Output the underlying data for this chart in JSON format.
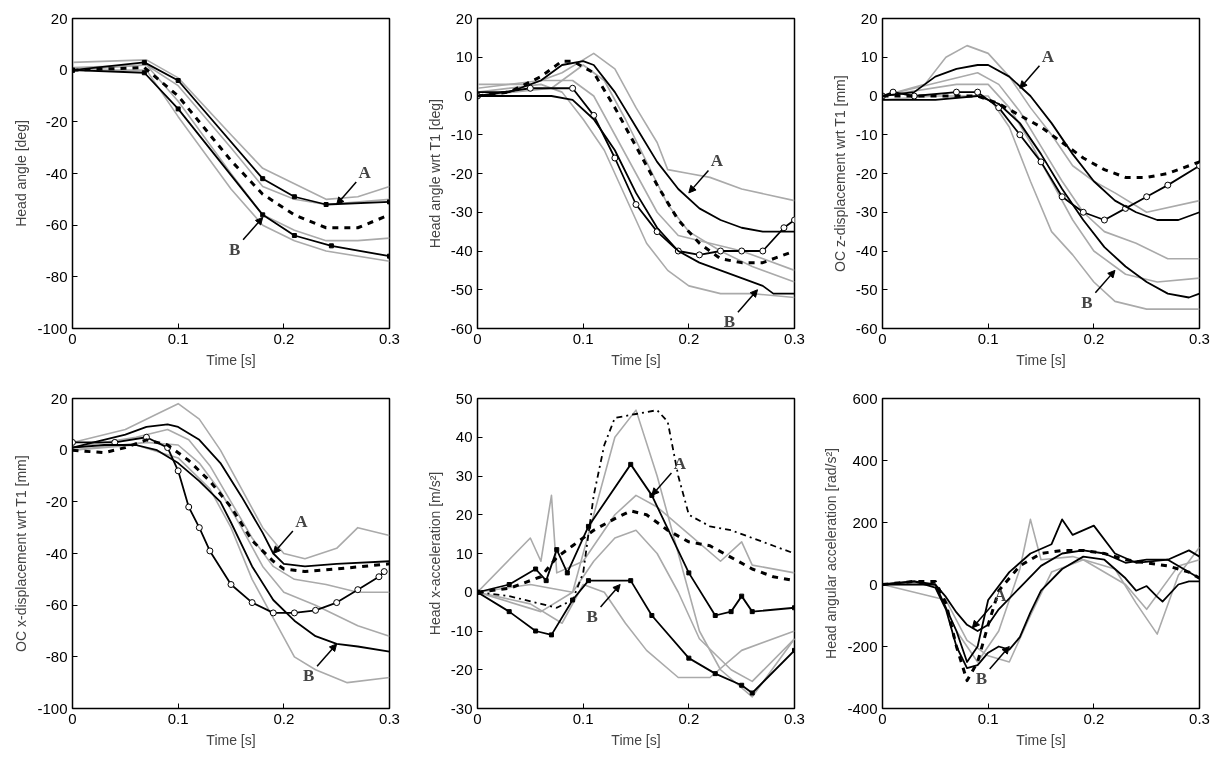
{
  "chart_data": [
    {
      "type": "line",
      "xlabel": "Time [s]",
      "ylabel": "Head angle [deg]",
      "xlim": [
        0,
        0.3
      ],
      "ylim": [
        -100,
        20
      ],
      "xticks": [
        0,
        0.1,
        0.2,
        0.3
      ],
      "yticks": [
        -100,
        -80,
        -60,
        -40,
        -20,
        0,
        20
      ],
      "grid": false,
      "annotations": [
        {
          "text": "A",
          "x": 0.25,
          "y": -52
        },
        {
          "text": "B",
          "x": 0.18,
          "y": -57
        }
      ],
      "series": [
        {
          "color": "#aaaaaa",
          "line_style": "solid",
          "x": [
            0,
            0.07,
            0.1,
            0.15,
            0.18,
            0.21,
            0.24,
            0.27,
            0.3
          ],
          "values": [
            3,
            4,
            -3,
            -25,
            -38,
            -44,
            -50,
            -49,
            -45
          ]
        },
        {
          "color": "#aaaaaa",
          "line_style": "solid",
          "x": [
            0,
            0.07,
            0.1,
            0.15,
            0.18,
            0.21,
            0.24,
            0.27,
            0.3
          ],
          "values": [
            0,
            2,
            -12,
            -40,
            -56,
            -62,
            -66,
            -66,
            -65
          ]
        },
        {
          "color": "#aaaaaa",
          "line_style": "solid",
          "x": [
            0,
            0.07,
            0.1,
            0.15,
            0.18,
            0.21,
            0.24,
            0.3
          ],
          "values": [
            0,
            0,
            -18,
            -46,
            -60,
            -66,
            -70,
            -74
          ]
        },
        {
          "color": "#aaaaaa",
          "line_style": "solid",
          "x": [
            0,
            0.07,
            0.1,
            0.15,
            0.18,
            0.21,
            0.24,
            0.3
          ],
          "values": [
            1,
            2,
            -6,
            -30,
            -45,
            -50,
            -52,
            -50
          ]
        },
        {
          "color": "#000000",
          "line_style": "dashed",
          "x": [
            0,
            0.068,
            0.1,
            0.15,
            0.18,
            0.21,
            0.24,
            0.27,
            0.3
          ],
          "values": [
            0,
            1,
            -10,
            -35,
            -48,
            -56,
            -61,
            -61,
            -56
          ]
        },
        {
          "color": "#000000",
          "line_style": "solid",
          "marker": "square",
          "x": [
            0,
            0.068,
            0.1,
            0.18,
            0.21,
            0.24,
            0.3
          ],
          "values": [
            0,
            3,
            -4,
            -42,
            -49,
            -52,
            -51
          ]
        },
        {
          "color": "#000000",
          "line_style": "solid",
          "marker": "square",
          "x": [
            0,
            0.068,
            0.1,
            0.18,
            0.21,
            0.245,
            0.3
          ],
          "values": [
            0,
            -1,
            -15,
            -56,
            -64,
            -68,
            -72
          ]
        }
      ]
    },
    {
      "type": "line",
      "xlabel": "Time [s]",
      "ylabel": "Head angle wrt T1 [deg]",
      "xlim": [
        0,
        0.3
      ],
      "ylim": [
        -60,
        20
      ],
      "xticks": [
        0,
        0.1,
        0.2,
        0.3
      ],
      "yticks": [
        -60,
        -50,
        -40,
        -30,
        -20,
        -10,
        0,
        10,
        20
      ],
      "grid": false,
      "annotations": [
        {
          "text": "A",
          "x": 0.2,
          "y": -25
        },
        {
          "text": "B",
          "x": 0.265,
          "y": -50
        }
      ],
      "series": [
        {
          "color": "#aaaaaa",
          "line_style": "solid",
          "x": [
            0,
            0.05,
            0.08,
            0.11,
            0.13,
            0.15,
            0.17,
            0.18,
            0.2,
            0.22,
            0.25,
            0.3
          ],
          "values": [
            3,
            3,
            6,
            11,
            7,
            -3,
            -12,
            -19,
            -20,
            -21,
            -24,
            -27
          ]
        },
        {
          "color": "#aaaaaa",
          "line_style": "solid",
          "x": [
            0,
            0.06,
            0.08,
            0.1,
            0.12,
            0.14,
            0.16,
            0.18,
            0.2,
            0.23,
            0.26,
            0.3
          ],
          "values": [
            1,
            3,
            1,
            -6,
            -14,
            -26,
            -38,
            -45,
            -49,
            -51,
            -51,
            -52
          ]
        },
        {
          "color": "#aaaaaa",
          "line_style": "solid",
          "x": [
            0,
            0.06,
            0.09,
            0.11,
            0.13,
            0.15,
            0.17,
            0.19,
            0.22,
            0.25,
            0.3
          ],
          "values": [
            2,
            4,
            4,
            0,
            -10,
            -20,
            -30,
            -36,
            -38,
            -40,
            -45
          ]
        },
        {
          "color": "#aaaaaa",
          "line_style": "solid",
          "x": [
            0,
            0.07,
            0.1,
            0.12,
            0.14,
            0.16,
            0.18,
            0.2,
            0.23,
            0.26,
            0.3
          ],
          "values": [
            0,
            2,
            8,
            4,
            -6,
            -17,
            -28,
            -35,
            -40,
            -44,
            -48
          ]
        },
        {
          "color": "#000000",
          "line_style": "solid",
          "marker": "circle",
          "x": [
            0,
            0.05,
            0.09,
            0.11,
            0.13,
            0.15,
            0.17,
            0.19,
            0.21,
            0.23,
            0.25,
            0.27,
            0.29,
            0.3
          ],
          "values": [
            0,
            2,
            2,
            -5,
            -16,
            -28,
            -35,
            -40,
            -41,
            -40,
            -40,
            -40,
            -34,
            -32
          ]
        },
        {
          "color": "#000000",
          "line_style": "dashed",
          "x": [
            0,
            0.03,
            0.06,
            0.08,
            0.09,
            0.11,
            0.13,
            0.15,
            0.17,
            0.19,
            0.21,
            0.23,
            0.25,
            0.27,
            0.3
          ],
          "values": [
            0,
            1,
            5,
            9,
            9,
            6,
            -3,
            -13,
            -23,
            -32,
            -38,
            -42,
            -43,
            -43,
            -40
          ]
        },
        {
          "color": "#000000",
          "line_style": "solid",
          "x": [
            0,
            0.03,
            0.06,
            0.08,
            0.1,
            0.11,
            0.13,
            0.15,
            0.17,
            0.19,
            0.21,
            0.23,
            0.25,
            0.27,
            0.3
          ],
          "values": [
            1,
            1,
            4,
            8,
            9,
            8,
            1,
            -8,
            -17,
            -24,
            -29,
            -32,
            -34,
            -35,
            -35
          ]
        },
        {
          "color": "#000000",
          "line_style": "solid",
          "x": [
            0,
            0.05,
            0.07,
            0.09,
            0.11,
            0.13,
            0.15,
            0.17,
            0.19,
            0.21,
            0.23,
            0.25,
            0.27,
            0.28,
            0.3
          ],
          "values": [
            0,
            0,
            0,
            -1,
            -6,
            -14,
            -25,
            -34,
            -40,
            -43,
            -45,
            -47,
            -49,
            -51,
            -51
          ]
        }
      ]
    },
    {
      "type": "line",
      "xlabel": "Time [s]",
      "ylabel": "OC z-displacement wrt T1 [mm]",
      "xlim": [
        0,
        0.3
      ],
      "ylim": [
        -60,
        20
      ],
      "xticks": [
        0,
        0.1,
        0.2,
        0.3
      ],
      "yticks": [
        -60,
        -50,
        -40,
        -30,
        -20,
        -10,
        0,
        10,
        20
      ],
      "grid": false,
      "annotations": [
        {
          "text": "A",
          "x": 0.13,
          "y": 2
        },
        {
          "text": "B",
          "x": 0.22,
          "y": -45
        }
      ],
      "series": [
        {
          "color": "#aaaaaa",
          "line_style": "solid",
          "x": [
            0,
            0.04,
            0.06,
            0.08,
            0.1,
            0.12,
            0.14,
            0.16,
            0.18,
            0.2,
            0.22,
            0.25,
            0.3
          ],
          "values": [
            0,
            3,
            10,
            13,
            11,
            5,
            -3,
            -10,
            -18,
            -22,
            -25,
            -30,
            -27
          ]
        },
        {
          "color": "#aaaaaa",
          "line_style": "solid",
          "x": [
            0,
            0.05,
            0.1,
            0.12,
            0.14,
            0.16,
            0.18,
            0.2,
            0.22,
            0.25,
            0.3
          ],
          "values": [
            -1,
            0,
            0,
            -8,
            -22,
            -35,
            -41,
            -48,
            -53,
            -55,
            -55
          ]
        },
        {
          "color": "#aaaaaa",
          "line_style": "solid",
          "x": [
            0,
            0.06,
            0.09,
            0.11,
            0.13,
            0.15,
            0.17,
            0.19,
            0.21,
            0.24,
            0.27,
            0.3
          ],
          "values": [
            0,
            4,
            6,
            3,
            -4,
            -13,
            -22,
            -30,
            -35,
            -38,
            -42,
            -42
          ]
        },
        {
          "color": "#aaaaaa",
          "line_style": "solid",
          "x": [
            0,
            0.07,
            0.1,
            0.12,
            0.14,
            0.16,
            0.18,
            0.2,
            0.23,
            0.26,
            0.3
          ],
          "values": [
            0,
            3,
            3,
            -3,
            -12,
            -22,
            -32,
            -40,
            -46,
            -48,
            -47
          ]
        },
        {
          "color": "#000000",
          "line_style": "solid",
          "marker": "circle",
          "x": [
            0,
            0.01,
            0.03,
            0.07,
            0.09,
            0.11,
            0.13,
            0.15,
            0.17,
            0.19,
            0.21,
            0.23,
            0.25,
            0.27,
            0.3
          ],
          "values": [
            0,
            1,
            0,
            1,
            1,
            -3,
            -10,
            -17,
            -26,
            -30,
            -32,
            -29,
            -26,
            -23,
            -18
          ]
        },
        {
          "color": "#000000",
          "line_style": "dashed",
          "x": [
            0,
            0.05,
            0.09,
            0.11,
            0.13,
            0.15,
            0.17,
            0.19,
            0.21,
            0.23,
            0.25,
            0.27,
            0.3
          ],
          "values": [
            0,
            0,
            0,
            -2,
            -5,
            -8,
            -12,
            -16,
            -19,
            -21,
            -21,
            -20,
            -17
          ]
        },
        {
          "color": "#000000",
          "line_style": "solid",
          "x": [
            0,
            0.03,
            0.05,
            0.07,
            0.09,
            0.1,
            0.12,
            0.14,
            0.16,
            0.18,
            0.2,
            0.22,
            0.24,
            0.26,
            0.28,
            0.3
          ],
          "values": [
            0,
            1,
            5,
            7,
            8,
            8,
            5,
            0,
            -7,
            -15,
            -22,
            -27,
            -30,
            -32,
            -32,
            -30
          ]
        },
        {
          "color": "#000000",
          "line_style": "solid",
          "x": [
            0,
            0.05,
            0.09,
            0.11,
            0.13,
            0.15,
            0.17,
            0.19,
            0.21,
            0.23,
            0.25,
            0.27,
            0.29,
            0.3
          ],
          "values": [
            -1,
            -1,
            0,
            -2,
            -7,
            -15,
            -24,
            -32,
            -39,
            -44,
            -48,
            -51,
            -52,
            -51
          ]
        }
      ]
    },
    {
      "type": "line",
      "xlabel": "Time [s]",
      "ylabel": "OC x-displacement wrt T1 [mm]",
      "xlim": [
        0,
        0.3
      ],
      "ylim": [
        -100,
        20
      ],
      "xticks": [
        0,
        0.1,
        0.2,
        0.3
      ],
      "yticks": [
        -100,
        -80,
        -60,
        -40,
        -20,
        0,
        20
      ],
      "grid": false,
      "annotations": [
        {
          "text": "A",
          "x": 0.19,
          "y": -40
        },
        {
          "text": "B",
          "x": 0.25,
          "y": -75
        }
      ],
      "series": [
        {
          "color": "#aaaaaa",
          "line_style": "solid",
          "x": [
            0,
            0.05,
            0.08,
            0.1,
            0.12,
            0.14,
            0.16,
            0.18,
            0.2,
            0.22,
            0.25,
            0.27,
            0.3
          ],
          "values": [
            3,
            8,
            14,
            18,
            12,
            0,
            -15,
            -30,
            -40,
            -42,
            -38,
            -30,
            -33
          ]
        },
        {
          "color": "#aaaaaa",
          "line_style": "solid",
          "x": [
            0,
            0.06,
            0.1,
            0.13,
            0.15,
            0.17,
            0.19,
            0.21,
            0.23,
            0.26,
            0.3
          ],
          "values": [
            0,
            2,
            -3,
            -15,
            -30,
            -50,
            -65,
            -80,
            -85,
            -90,
            -88
          ]
        },
        {
          "color": "#aaaaaa",
          "line_style": "solid",
          "x": [
            0,
            0.06,
            0.09,
            0.11,
            0.13,
            0.15,
            0.17,
            0.19,
            0.21,
            0.24,
            0.27,
            0.3
          ],
          "values": [
            1,
            5,
            8,
            4,
            -6,
            -20,
            -34,
            -45,
            -50,
            -52,
            -55,
            -55
          ]
        },
        {
          "color": "#aaaaaa",
          "line_style": "solid",
          "x": [
            0,
            0.07,
            0.1,
            0.12,
            0.14,
            0.16,
            0.18,
            0.2,
            0.23,
            0.27,
            0.3
          ],
          "values": [
            0,
            3,
            2,
            -5,
            -16,
            -30,
            -45,
            -55,
            -60,
            -68,
            -72
          ]
        },
        {
          "color": "#000000",
          "line_style": "solid",
          "marker": "circle",
          "x": [
            0,
            0.04,
            0.07,
            0.09,
            0.1,
            0.11,
            0.12,
            0.13,
            0.15,
            0.17,
            0.19,
            0.21,
            0.23,
            0.25,
            0.27,
            0.29,
            0.295
          ],
          "values": [
            3,
            3,
            5,
            1,
            -8,
            -22,
            -30,
            -39,
            -52,
            -59,
            -63,
            -63,
            -62,
            -59,
            -54,
            -49,
            -47
          ]
        },
        {
          "color": "#000000",
          "line_style": "dashed",
          "x": [
            0,
            0.03,
            0.05,
            0.07,
            0.09,
            0.11,
            0.13,
            0.15,
            0.17,
            0.19,
            0.2,
            0.22,
            0.25,
            0.3
          ],
          "values": [
            0,
            -1,
            1,
            4,
            2,
            -4,
            -12,
            -22,
            -35,
            -43,
            -46,
            -47,
            -46,
            -44
          ]
        },
        {
          "color": "#000000",
          "line_style": "solid",
          "x": [
            0,
            0.02,
            0.05,
            0.07,
            0.09,
            0.1,
            0.12,
            0.14,
            0.16,
            0.18,
            0.19,
            0.2,
            0.22,
            0.25,
            0.3
          ],
          "values": [
            1,
            3,
            6,
            9,
            10,
            9,
            4,
            -5,
            -18,
            -32,
            -40,
            -44,
            -45,
            -44,
            -43
          ]
        },
        {
          "color": "#000000",
          "line_style": "solid",
          "x": [
            0,
            0.03,
            0.06,
            0.08,
            0.1,
            0.12,
            0.14,
            0.15,
            0.17,
            0.19,
            0.21,
            0.23,
            0.25,
            0.27,
            0.3
          ],
          "values": [
            1,
            2,
            2,
            0,
            -5,
            -12,
            -20,
            -28,
            -45,
            -58,
            -66,
            -72,
            -75,
            -76,
            -78
          ]
        }
      ]
    },
    {
      "type": "line",
      "xlabel": "Time [s]",
      "ylabel": "Head x-acceleration [m/s²]",
      "xlim": [
        0,
        0.3
      ],
      "ylim": [
        -30,
        50
      ],
      "xticks": [
        0,
        0.1,
        0.2,
        0.3
      ],
      "yticks": [
        -30,
        -20,
        -10,
        0,
        10,
        20,
        30,
        40,
        50
      ],
      "grid": false,
      "annotations": [
        {
          "text": "A",
          "x": 0.165,
          "y": 25
        },
        {
          "text": "B",
          "x": 0.135,
          "y": 2
        }
      ],
      "series": [
        {
          "color": "#aaaaaa",
          "line_style": "solid",
          "x": [
            0,
            0.05,
            0.09,
            0.11,
            0.13,
            0.15,
            0.17,
            0.19,
            0.21,
            0.23,
            0.26,
            0.3
          ],
          "values": [
            0,
            2,
            0,
            20,
            40,
            47,
            30,
            10,
            -10,
            -20,
            -27,
            -12
          ]
        },
        {
          "color": "#aaaaaa",
          "line_style": "solid",
          "x": [
            0,
            0.05,
            0.06,
            0.07,
            0.075,
            0.1,
            0.13,
            0.15,
            0.17,
            0.2,
            0.23,
            0.25,
            0.26,
            0.3
          ],
          "values": [
            0,
            14,
            8,
            25,
            5,
            8,
            20,
            25,
            22,
            15,
            8,
            13,
            7,
            5
          ]
        },
        {
          "color": "#aaaaaa",
          "line_style": "solid",
          "x": [
            0,
            0.05,
            0.08,
            0.1,
            0.12,
            0.14,
            0.16,
            0.19,
            0.22,
            0.25,
            0.3
          ],
          "values": [
            0,
            -3,
            -8,
            2,
            0,
            -8,
            -15,
            -22,
            -22,
            -15,
            -10
          ]
        },
        {
          "color": "#aaaaaa",
          "line_style": "solid",
          "x": [
            0,
            0.06,
            0.09,
            0.11,
            0.13,
            0.15,
            0.17,
            0.19,
            0.21,
            0.24,
            0.26,
            0.3
          ],
          "values": [
            0,
            -5,
            0,
            8,
            14,
            16,
            10,
            0,
            -12,
            -20,
            -23,
            -12
          ]
        },
        {
          "color": "#000000",
          "line_style": "dashdot",
          "x": [
            0,
            0.03,
            0.06,
            0.075,
            0.09,
            0.1,
            0.11,
            0.12,
            0.13,
            0.15,
            0.17,
            0.18,
            0.19,
            0.2,
            0.22,
            0.24,
            0.26,
            0.28,
            0.3
          ],
          "values": [
            0,
            -1,
            -3,
            -4,
            -2,
            5,
            25,
            38,
            45,
            46,
            47,
            44,
            30,
            20,
            17,
            16,
            14,
            12,
            10
          ]
        },
        {
          "color": "#000000",
          "line_style": "dashed",
          "x": [
            0,
            0.03,
            0.06,
            0.075,
            0.09,
            0.11,
            0.13,
            0.145,
            0.16,
            0.18,
            0.2,
            0.22,
            0.24,
            0.26,
            0.28,
            0.3
          ],
          "values": [
            0,
            1,
            4,
            9,
            12,
            16,
            19,
            21,
            20,
            16,
            13,
            12,
            9,
            6,
            4,
            3
          ]
        },
        {
          "color": "#000000",
          "line_style": "solid",
          "marker": "square",
          "x": [
            0,
            0.03,
            0.055,
            0.065,
            0.075,
            0.085,
            0.105,
            0.145,
            0.165,
            0.2,
            0.225,
            0.24,
            0.25,
            0.26,
            0.3
          ],
          "values": [
            0,
            2,
            6,
            3,
            11,
            5,
            17,
            33,
            25,
            5,
            -6,
            -5,
            -1,
            -5,
            -4
          ]
        },
        {
          "color": "#000000",
          "line_style": "solid",
          "marker": "square",
          "x": [
            0,
            0.03,
            0.055,
            0.07,
            0.09,
            0.105,
            0.145,
            0.165,
            0.2,
            0.225,
            0.25,
            0.26,
            0.3
          ],
          "values": [
            0,
            -5,
            -10,
            -11,
            -2,
            3,
            3,
            -6,
            -17,
            -21,
            -24,
            -26,
            -15
          ]
        }
      ]
    },
    {
      "type": "line",
      "xlabel": "Time [s]",
      "ylabel": "Head angular acceleration [rad/s²]",
      "xlim": [
        0,
        0.3
      ],
      "ylim": [
        -400,
        600
      ],
      "xticks": [
        0,
        0.1,
        0.2,
        0.3
      ],
      "yticks": [
        -400,
        -200,
        0,
        200,
        400,
        600
      ],
      "grid": false,
      "annotations": [
        {
          "text": "A",
          "x": 0.085,
          "y": -140
        },
        {
          "text": "B",
          "x": 0.12,
          "y": -200
        }
      ],
      "series": [
        {
          "color": "#aaaaaa",
          "line_style": "solid",
          "x": [
            0,
            0.05,
            0.07,
            0.09,
            0.11,
            0.13,
            0.14,
            0.15,
            0.18,
            0.22,
            0.24,
            0.26,
            0.28,
            0.3
          ],
          "values": [
            0,
            0,
            -150,
            -250,
            -150,
            50,
            210,
            80,
            90,
            50,
            -60,
            -160,
            30,
            120
          ]
        },
        {
          "color": "#aaaaaa",
          "line_style": "solid",
          "x": [
            0,
            0.06,
            0.08,
            0.1,
            0.12,
            0.14,
            0.16,
            0.19,
            0.23,
            0.25,
            0.28,
            0.3
          ],
          "values": [
            0,
            -50,
            -180,
            -230,
            -250,
            -100,
            40,
            80,
            0,
            -80,
            60,
            80
          ]
        },
        {
          "color": "#000000",
          "line_style": "solid",
          "x": [
            0,
            0.05,
            0.07,
            0.08,
            0.09,
            0.1,
            0.12,
            0.14,
            0.16,
            0.17,
            0.18,
            0.2,
            0.22,
            0.24,
            0.27,
            0.3
          ],
          "values": [
            0,
            0,
            -150,
            -250,
            -200,
            -50,
            40,
            100,
            130,
            210,
            160,
            190,
            100,
            70,
            80,
            20
          ]
        },
        {
          "color": "#000000",
          "line_style": "dashed",
          "x": [
            0,
            0.03,
            0.05,
            0.06,
            0.07,
            0.08,
            0.09,
            0.1,
            0.11,
            0.13,
            0.15,
            0.17,
            0.19,
            0.21,
            0.23,
            0.25,
            0.27,
            0.29,
            0.3
          ],
          "values": [
            0,
            10,
            10,
            -60,
            -200,
            -310,
            -250,
            -130,
            -20,
            60,
            100,
            110,
            110,
            100,
            80,
            70,
            60,
            40,
            20
          ]
        },
        {
          "color": "#000000",
          "line_style": "solid",
          "x": [
            0,
            0.03,
            0.05,
            0.06,
            0.07,
            0.08,
            0.09,
            0.1,
            0.11,
            0.13,
            0.15,
            0.17,
            0.19,
            0.21,
            0.23,
            0.25,
            0.27,
            0.29,
            0.3
          ],
          "values": [
            0,
            10,
            0,
            -40,
            -90,
            -130,
            -150,
            -130,
            -80,
            -10,
            60,
            100,
            110,
            100,
            70,
            80,
            80,
            110,
            90
          ]
        },
        {
          "color": "#000000",
          "line_style": "solid",
          "x": [
            0,
            0.03,
            0.05,
            0.06,
            0.07,
            0.08,
            0.09,
            0.1,
            0.11,
            0.12,
            0.13,
            0.14,
            0.15,
            0.17,
            0.19,
            0.21,
            0.23,
            0.24,
            0.25,
            0.26,
            0.265,
            0.28,
            0.29,
            0.3
          ],
          "values": [
            0,
            10,
            -10,
            -80,
            -200,
            -270,
            -260,
            -220,
            -200,
            -210,
            -170,
            -90,
            -20,
            50,
            90,
            80,
            20,
            -20,
            -5,
            -40,
            -55,
            0,
            10,
            10
          ]
        }
      ]
    }
  ]
}
